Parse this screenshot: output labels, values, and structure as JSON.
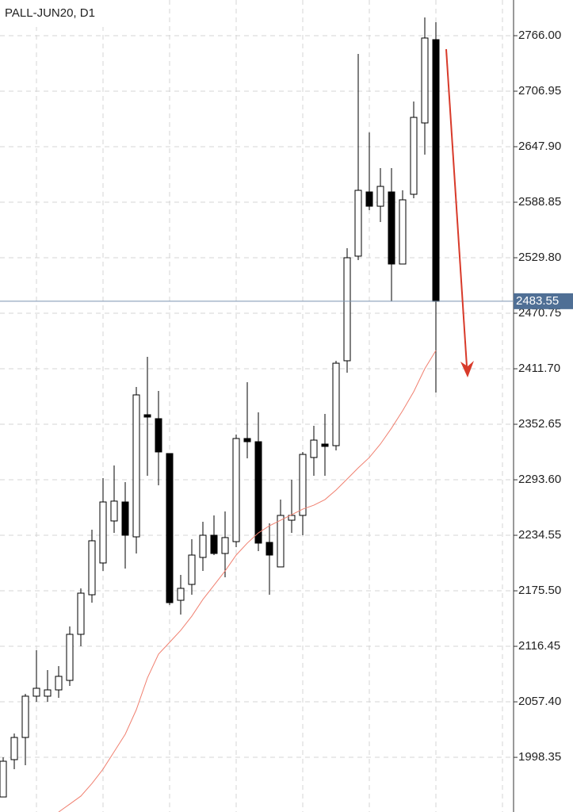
{
  "chart_data": {
    "type": "candlestick",
    "title": "PALL-JUN20, D1",
    "open": [
      1956.2,
      1995.9,
      2019.5,
      2063.4,
      2063.4,
      2070.1,
      2080.2,
      2129.2,
      2171.3,
      2205.1,
      2249.8,
      2270.0,
      2232.9,
      2362.8,
      2358.6,
      2321.5,
      2165.4,
      2182.3,
      2211.0,
      2234.6,
      2215.2,
      2227.8,
      2337.5,
      2334.1,
      2227.0,
      2200.9,
      2250.6,
      2255.7,
      2317.3,
      2331.6,
      2329.9,
      2420.2,
      2531.5,
      2599.8,
      2584.6,
      2599.8,
      2523.1,
      2597.3,
      2673.2,
      2761.8
    ],
    "high": [
      1998.4,
      2023.7,
      2065.9,
      2112.3,
      2091.2,
      2095.4,
      2137.6,
      2178.1,
      2240.5,
      2295.3,
      2308.8,
      2291.1,
      2392.3,
      2424.4,
      2388.1,
      2321.5,
      2192.4,
      2230.4,
      2248.9,
      2255.7,
      2259.9,
      2341.7,
      2397.4,
      2365.3,
      2247.2,
      2272.5,
      2293.6,
      2323.2,
      2351.0,
      2363.6,
      2420.2,
      2539.9,
      2746.6,
      2663.1,
      2625.1,
      2625.1,
      2601.5,
      2696.0,
      2785.4,
      2780.3
    ],
    "low": [
      1956.2,
      1985.8,
      1990.0,
      2057.5,
      2057.5,
      2061.7,
      2074.3,
      2116.5,
      2162.9,
      2196.6,
      2237.1,
      2199.2,
      2215.2,
      2297.9,
      2287.7,
      2160.4,
      2150.2,
      2171.3,
      2196.6,
      2213.5,
      2189.9,
      2221.9,
      2316.4,
      2217.7,
      2171.3,
      2200.9,
      2237.1,
      2234.6,
      2297.9,
      2297.9,
      2324.8,
      2407.5,
      2527.3,
      2580.4,
      2567.8,
      2483.4,
      2523.1,
      2593.1,
      2639.5,
      2386.4
    ],
    "close": [
      1994.2,
      2019.5,
      2063.4,
      2071.8,
      2070.1,
      2084.5,
      2129.2,
      2173.0,
      2228.7,
      2270.0,
      2270.9,
      2234.6,
      2383.9,
      2360.3,
      2323.2,
      2162.9,
      2178.1,
      2213.5,
      2234.6,
      2215.2,
      2232.1,
      2337.5,
      2334.1,
      2226.2,
      2213.5,
      2255.7,
      2255.7,
      2320.6,
      2335.8,
      2329.1,
      2417.6,
      2529.8,
      2601.5,
      2584.6,
      2605.7,
      2523.1,
      2591.4,
      2679.1,
      2763.5,
      2483.4
    ],
    "moving_average": {
      "color": "#f08070",
      "values": [
        null,
        null,
        null,
        null,
        null,
        1940.2,
        1948.6,
        1957.1,
        1970.5,
        1985.8,
        2004.3,
        2022.9,
        2049.0,
        2082.8,
        2108.1,
        2120.7,
        2133.4,
        2148.5,
        2166.3,
        2181.4,
        2196.6,
        2213.5,
        2226.2,
        2237.1,
        2244.7,
        2250.6,
        2256.5,
        2262.4,
        2266.6,
        2272.5,
        2282.7,
        2294.4,
        2306.3,
        2317.3,
        2331.6,
        2348.5,
        2367.0,
        2387.3,
        2411.7,
        2431.1
      ]
    },
    "current_price": 2483.55,
    "ylim": [
      1940.2,
      2803.96
    ],
    "yticks": [
      {
        "value": 1998.35,
        "label": "1998.35"
      },
      {
        "value": 2057.4,
        "label": "2057.40"
      },
      {
        "value": 2116.45,
        "label": "2116.45"
      },
      {
        "value": 2175.5,
        "label": "2175.50"
      },
      {
        "value": 2234.55,
        "label": "2234.55"
      },
      {
        "value": 2293.6,
        "label": "2293.60"
      },
      {
        "value": 2352.65,
        "label": "2352.65"
      },
      {
        "value": 2411.7,
        "label": "2411.70"
      },
      {
        "value": 2470.75,
        "label": "2470.75"
      },
      {
        "value": 2529.8,
        "label": "2529.80"
      },
      {
        "value": 2588.85,
        "label": "2588.85"
      },
      {
        "value": 2647.9,
        "label": "2647.90"
      },
      {
        "value": 2706.95,
        "label": "2706.95"
      },
      {
        "value": 2766.0,
        "label": "2766.00"
      }
    ],
    "grid": true
  }
}
